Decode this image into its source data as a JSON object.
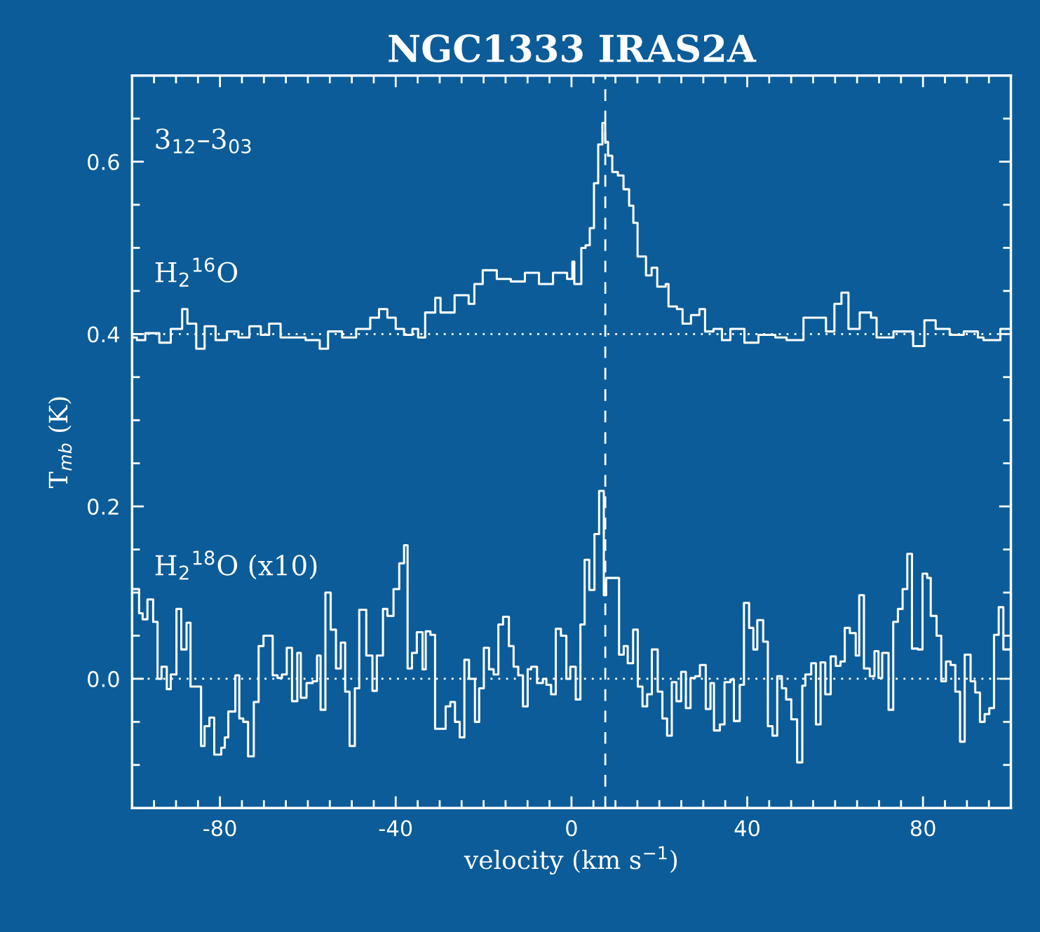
{
  "chart_data": {
    "type": "step",
    "title": "NGC1333 IRAS2A",
    "xlabel": "velocity (km s$^{−1}$)",
    "ylabel": "T$_{mb}$ (K)",
    "annotations": [
      "3$_{12}$–3$_{03}$"
    ],
    "xlim": [
      -100,
      100
    ],
    "ylim": [
      -0.15,
      0.7
    ],
    "xticks": [
      {
        "value": -95,
        "label": null
      },
      {
        "value": -90,
        "label": null
      },
      {
        "value": -85,
        "label": null
      },
      -80,
      {
        "value": -75,
        "label": null
      },
      {
        "value": -70,
        "label": null
      },
      {
        "value": -65,
        "label": null
      },
      {
        "value": -60,
        "label": null
      },
      {
        "value": -55,
        "label": null
      },
      {
        "value": -50,
        "label": null
      },
      {
        "value": -45,
        "label": null
      },
      -40,
      {
        "value": -35,
        "label": null
      },
      {
        "value": -30,
        "label": null
      },
      {
        "value": -25,
        "label": null
      },
      {
        "value": -20,
        "label": null
      },
      {
        "value": -15,
        "label": null
      },
      {
        "value": -10,
        "label": null
      },
      {
        "value": -5,
        "label": null
      },
      0,
      {
        "value": 5,
        "label": null
      },
      {
        "value": 10,
        "label": null
      },
      {
        "value": 15,
        "label": null
      },
      {
        "value": 20,
        "label": null
      },
      {
        "value": 25,
        "label": null
      },
      {
        "value": 30,
        "label": null
      },
      {
        "value": 35,
        "label": null
      },
      40,
      {
        "value": 45,
        "label": null
      },
      {
        "value": 50,
        "label": null
      },
      {
        "value": 55,
        "label": null
      },
      {
        "value": 60,
        "label": null
      },
      {
        "value": 65,
        "label": null
      },
      {
        "value": 70,
        "label": null
      },
      {
        "value": 75,
        "label": null
      },
      80,
      {
        "value": 85,
        "label": null
      },
      {
        "value": 90,
        "label": null
      },
      {
        "value": 95,
        "label": null
      }
    ],
    "yticks": [
      {
        "value": -0.1,
        "label": null
      },
      {
        "value": -0.05,
        "label": null
      },
      {
        "value": 0,
        "label": "0.0"
      },
      {
        "value": 0.05,
        "label": null
      },
      {
        "value": 0.1,
        "label": null
      },
      {
        "value": 0.15,
        "label": null
      },
      0.2,
      {
        "value": 0.25,
        "label": null
      },
      {
        "value": 0.3,
        "label": null
      },
      {
        "value": 0.35,
        "label": null
      },
      0.4,
      {
        "value": 0.45,
        "label": null
      },
      {
        "value": 0.5,
        "label": null
      },
      {
        "value": 0.55,
        "label": null
      },
      0.6,
      {
        "value": 0.65,
        "label": null
      }
    ],
    "grid": false,
    "legend": "left",
    "ref_lines": [
      {
        "axis": "x",
        "value": 7.7,
        "label": null,
        "color": "#ffffff",
        "line_style": "dashed"
      },
      {
        "axis": "y",
        "value": 0.4,
        "label": null,
        "color": "#ffffff",
        "line_style": "dotted"
      },
      {
        "axis": "y",
        "value": 0,
        "label": null,
        "color": "#ffffff",
        "line_style": "dotted"
      }
    ],
    "series": [
      {
        "name": "H$_{2}$$^{16}$O",
        "color": "#ffffff",
        "x": [
          -100,
          -98.9,
          -97,
          -93.8,
          -91.2,
          -88.6,
          -87.4,
          -85.4,
          -83.5,
          -81,
          -78.4,
          -75.8,
          -73.3,
          -70.7,
          -68.8,
          -66.2,
          -63,
          -60.5,
          -57.3,
          -55.4,
          -52.2,
          -49,
          -45.8,
          -43.8,
          -41.9,
          -40,
          -38.1,
          -36.2,
          -34.9,
          -33.3,
          -31,
          -29.8,
          -26.6,
          -23.4,
          -22.1,
          -20.2,
          -17,
          -13.8,
          -10.6,
          -7.4,
          -4.2,
          -1,
          0.2,
          0.64,
          2.24,
          3.2,
          4.16,
          5.12,
          6.08,
          7.04,
          7.68,
          8.32,
          9.28,
          10.56,
          11.84,
          13.12,
          14.08,
          15.04,
          16.96,
          18.24,
          19.52,
          21.44,
          22.08,
          24,
          25.28,
          27.2,
          29.12,
          30.4,
          32.32,
          34.24,
          36.16,
          39.36,
          42.56,
          46.4,
          48.96,
          52.8,
          55.36,
          57.92,
          59.84,
          61.44,
          63.04,
          65.6,
          68.16,
          69.44,
          73.28,
          77.76,
          80.32,
          82.88,
          86.08,
          89.28,
          92.48,
          93.76,
          97.6,
          100
        ],
        "values": [
          0.396,
          0.393,
          0.401,
          0.39,
          0.406,
          0.429,
          0.412,
          0.383,
          0.409,
          0.393,
          0.403,
          0.396,
          0.409,
          0.399,
          0.412,
          0.396,
          0.396,
          0.393,
          0.383,
          0.403,
          0.396,
          0.406,
          0.419,
          0.429,
          0.419,
          0.406,
          0.399,
          0.406,
          0.396,
          0.425,
          0.442,
          0.425,
          0.445,
          0.435,
          0.458,
          0.474,
          0.464,
          0.461,
          0.471,
          0.458,
          0.471,
          0.464,
          0.484,
          0.458,
          0.5,
          0.503,
          0.523,
          0.575,
          0.62,
          0.645,
          0.623,
          0.607,
          0.588,
          0.584,
          0.568,
          0.549,
          0.529,
          0.49,
          0.468,
          0.477,
          0.455,
          0.458,
          0.432,
          0.429,
          0.412,
          0.422,
          0.429,
          0.403,
          0.406,
          0.393,
          0.406,
          0.39,
          0.399,
          0.396,
          0.393,
          0.419,
          0.419,
          0.403,
          0.435,
          0.448,
          0.406,
          0.425,
          0.419,
          0.396,
          0.403,
          0.386,
          0.416,
          0.406,
          0.399,
          0.403,
          0.396,
          0.393,
          0.406,
          0.4
        ]
      },
      {
        "name": "H$_{2}$$^{18}$O (x10)",
        "color": "#ffffff",
        "x": [
          -100,
          -98.4,
          -97.6,
          -96.5,
          -95.2,
          -94.2,
          -93.3,
          -92.1,
          -91.2,
          -89.9,
          -88.8,
          -87.6,
          -86.7,
          -84.3,
          -83.5,
          -82.4,
          -81.3,
          -79.7,
          -78.9,
          -78.1,
          -76.5,
          -75.6,
          -74.7,
          -73.6,
          -72.3,
          -71.2,
          -70.1,
          -68,
          -66.9,
          -65.9,
          -64.8,
          -63.6,
          -62.4,
          -61.6,
          -60.3,
          -58.9,
          -57.9,
          -57.1,
          -56,
          -54.8,
          -53.6,
          -52.5,
          -51.5,
          -50.5,
          -49.3,
          -48.3,
          -46.7,
          -45.3,
          -44.3,
          -42.9,
          -41.9,
          -40.5,
          -39.2,
          -38.1,
          -37.3,
          -36.3,
          -35.2,
          -33.9,
          -33.17,
          -32.1,
          -31.04,
          -28.64,
          -27.57,
          -26.51,
          -25.44,
          -24.37,
          -23.31,
          -21.97,
          -21.01,
          -19.95,
          -18.77,
          -17.71,
          -16.64,
          -15.57,
          -14.24,
          -13.17,
          -12.11,
          -11.04,
          -9.97,
          -9.17,
          -7.84,
          -6.51,
          -5.71,
          -4.64,
          -3.57,
          -2.4,
          -1.17,
          -0.27,
          0.96,
          2.03,
          2.99,
          4.05,
          5.23,
          6.29,
          7.36,
          7.89,
          10.83,
          11.89,
          12.8,
          14.03,
          15.09,
          16.16,
          17.23,
          18.29,
          19.63,
          20.69,
          21.76,
          22.83,
          23.89,
          24.96,
          26.03,
          27.09,
          28.16,
          29.23,
          30.56,
          31.63,
          32.43,
          33.76,
          34.83,
          36.16,
          36.96,
          38.29,
          39.25,
          40.43,
          41.39,
          42.29,
          43.63,
          44.69,
          45.76,
          46.83,
          47.89,
          48.85,
          50.03,
          51.36,
          52.53,
          53.23,
          54.56,
          55.63,
          56.69,
          57.76,
          58.99,
          60.16,
          61.23,
          62.19,
          63.36,
          64.69,
          65.49,
          66.56,
          67.89,
          68.96,
          69.87,
          70.72,
          72.16,
          73.23,
          74.29,
          75.36,
          76.43,
          77.49,
          78.83,
          79.89,
          80.96,
          81.76,
          83.09,
          84.16,
          85.23,
          86.29,
          87.36,
          88.43,
          89.49,
          90.83,
          91.89,
          92.96,
          94.03,
          95.09,
          96.16,
          97.23,
          98.29,
          100
        ],
        "values": [
          0.104,
          0.076,
          0.069,
          0.092,
          0.066,
          0.0,
          0.014,
          -0.012,
          0.005,
          0.081,
          0.034,
          0.065,
          -0.009,
          -0.078,
          -0.055,
          -0.045,
          -0.088,
          -0.08,
          -0.068,
          -0.038,
          0.004,
          -0.046,
          -0.05,
          -0.09,
          -0.027,
          0.038,
          0.05,
          0.004,
          0.001,
          0.005,
          0.036,
          -0.026,
          0.03,
          -0.022,
          -0.005,
          -0.003,
          0.027,
          -0.036,
          0.1,
          0.057,
          0.012,
          0.042,
          -0.015,
          -0.078,
          -0.011,
          0.08,
          0.027,
          -0.014,
          0.027,
          0.081,
          0.073,
          0.104,
          0.134,
          0.155,
          0.012,
          0.03,
          0.054,
          0.011,
          0.055,
          0.051,
          -0.058,
          -0.032,
          -0.027,
          -0.05,
          -0.068,
          0.022,
          0.0,
          -0.05,
          -0.011,
          0.036,
          0.011,
          0.005,
          0.063,
          0.072,
          0.038,
          0.014,
          0.004,
          -0.032,
          0.011,
          0.014,
          -0.005,
          0.0,
          -0.007,
          -0.018,
          0.058,
          0.05,
          0.0,
          0.014,
          -0.024,
          0.063,
          0.138,
          0.103,
          0.168,
          0.218,
          0.097,
          0.117,
          0.028,
          0.038,
          0.018,
          0.057,
          -0.009,
          -0.032,
          -0.018,
          0.034,
          -0.015,
          -0.046,
          -0.066,
          -0.004,
          -0.026,
          0.008,
          -0.034,
          0.001,
          0.003,
          0.016,
          -0.035,
          -0.005,
          -0.06,
          -0.053,
          -0.004,
          -0.001,
          -0.049,
          -0.007,
          0.088,
          0.059,
          0.034,
          0.068,
          0.043,
          -0.055,
          -0.066,
          0.003,
          -0.011,
          -0.024,
          -0.047,
          -0.097,
          -0.008,
          0.005,
          0.018,
          -0.053,
          0.019,
          -0.018,
          0.026,
          0.015,
          0.02,
          0.059,
          0.053,
          0.027,
          0.097,
          0.012,
          0.003,
          0.032,
          0.001,
          0.03,
          -0.036,
          0.066,
          0.081,
          0.104,
          0.145,
          0.035,
          0.034,
          0.122,
          0.117,
          0.073,
          0.05,
          -0.003,
          0.02,
          0.016,
          -0.015,
          -0.073,
          0.028,
          -0.003,
          -0.016,
          -0.05,
          -0.041,
          -0.034,
          0.051,
          0.083,
          0.034,
          0.034
        ]
      }
    ]
  }
}
